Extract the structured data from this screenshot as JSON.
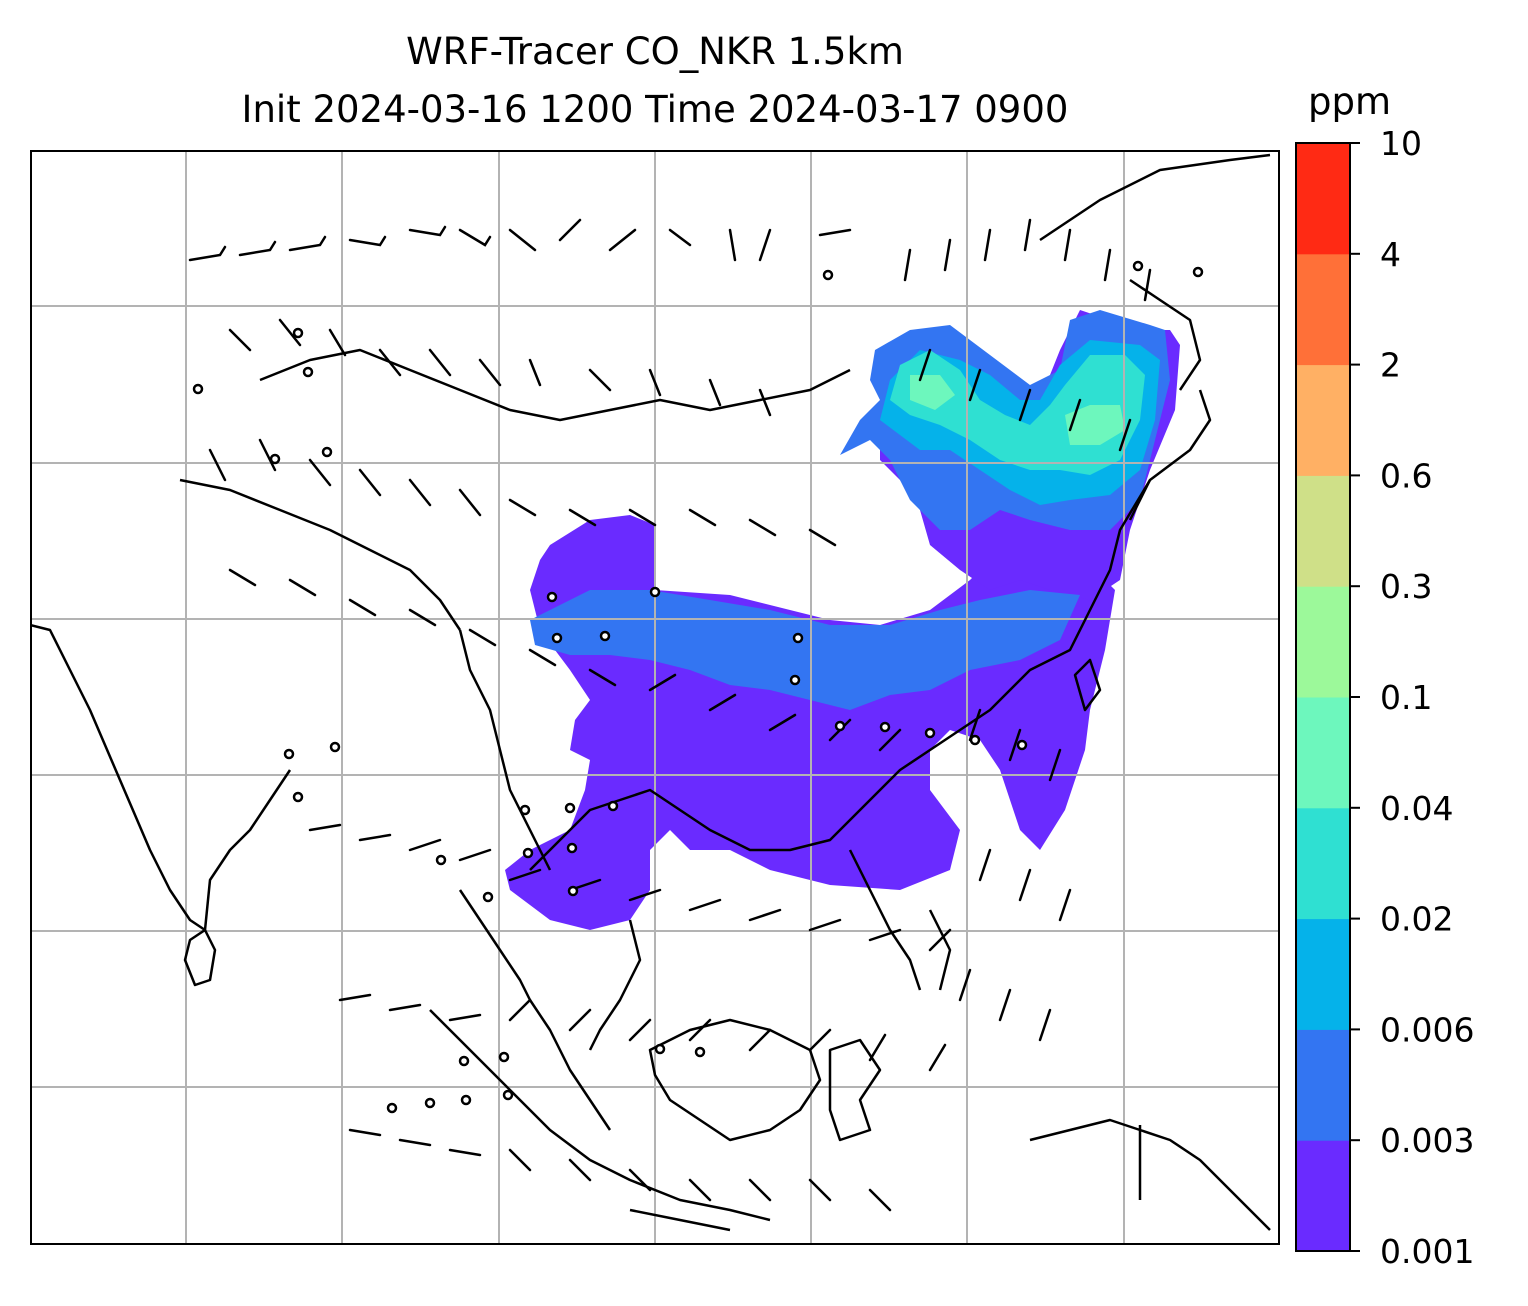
{
  "title": {
    "line1": "WRF-Tracer CO_NKR 1.5km",
    "line2": "Init 2024-03-16 1200 Time 2024-03-17 0900"
  },
  "colorbar": {
    "unit": "ppm",
    "levels": [
      "0.001",
      "0.003",
      "0.006",
      "0.02",
      "0.04",
      "0.1",
      "0.3",
      "0.6",
      "2",
      "4",
      "10"
    ],
    "colors": [
      "#6a2bff",
      "#3375f2",
      "#05b2ea",
      "#2fe0d2",
      "#6df7bd",
      "#9cf99a",
      "#cfe088",
      "#ffb064",
      "#ff7038",
      "#ff2a14"
    ]
  },
  "map": {
    "background": "#ffffff",
    "coastline_color": "#000000",
    "grid_color": "#b3b3b3",
    "station_marker": "circle"
  }
}
